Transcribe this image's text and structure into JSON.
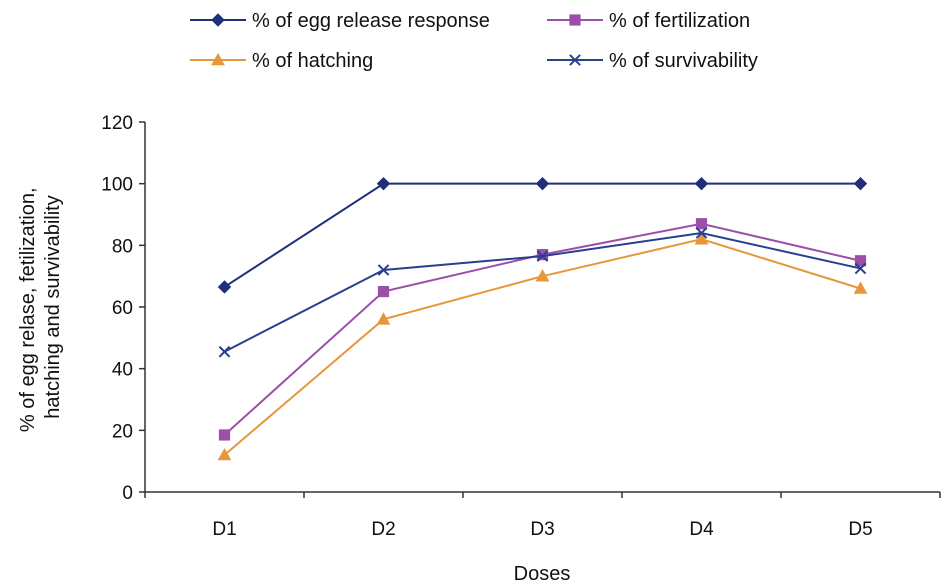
{
  "chart_data": {
    "type": "line",
    "categories": [
      "D1",
      "D2",
      "D3",
      "D4",
      "D5"
    ],
    "series": [
      {
        "name": "% of egg release response",
        "values": [
          66.5,
          100,
          100,
          100,
          100
        ],
        "color": "#1f2f7a",
        "marker": "diamond"
      },
      {
        "name": "% of fertilization",
        "values": [
          18.5,
          65,
          77,
          87,
          75
        ],
        "color": "#9b4fa8",
        "marker": "square"
      },
      {
        "name": "% of hatching",
        "values": [
          12,
          56,
          70,
          82,
          66
        ],
        "color": "#e8963a",
        "marker": "triangle"
      },
      {
        "name": "% of survivability",
        "values": [
          45.5,
          72,
          76.5,
          84,
          72.5
        ],
        "color": "#2a3f8f",
        "marker": "x"
      }
    ],
    "xlabel": "Doses",
    "ylabel_lines": [
      "% of egg relase, fetilization,",
      "hatching and survivability"
    ],
    "ylim": [
      0,
      120
    ],
    "yticks": [
      "0",
      "20",
      "40",
      "60",
      "80",
      "100",
      "120"
    ],
    "grid": false,
    "legend_position": "top"
  }
}
